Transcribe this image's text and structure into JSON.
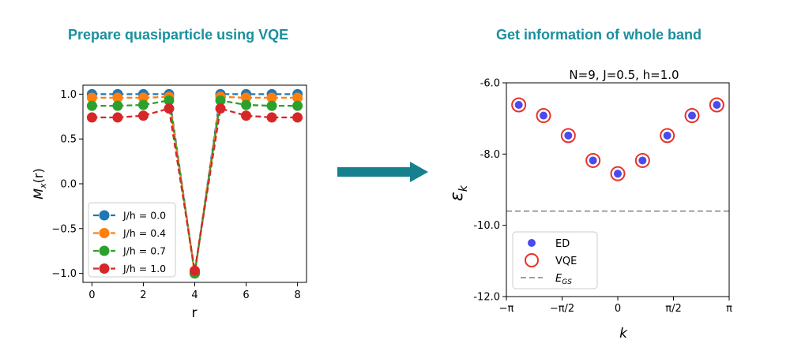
{
  "left_heading": "Prepare quasiparticle using VQE",
  "right_heading": "Get information of whole band",
  "chart_data": [
    {
      "type": "line",
      "title": "",
      "xlabel": "r",
      "ylabel": "M_x(r)",
      "ylabel_main": "M",
      "ylabel_sub": "x",
      "ylabel_tail": "(r)",
      "xlim": [
        -0.35,
        8.35
      ],
      "ylim": [
        -1.1,
        1.1
      ],
      "xticks": [
        0,
        2,
        4,
        6,
        8
      ],
      "xtick_labels": [
        "0",
        "2",
        "4",
        "6",
        "8"
      ],
      "yticks": [
        1.0,
        0.5,
        0.0,
        -0.5,
        -1.0
      ],
      "ytick_labels": [
        "1.0",
        "0.5",
        "0.0",
        "−0.5",
        "−1.0"
      ],
      "legend_position": "lower-left",
      "x": [
        0,
        1,
        2,
        3,
        4,
        5,
        6,
        7,
        8
      ],
      "series": [
        {
          "name": "J/h = 0.0",
          "color": "#1f77b4",
          "values": [
            1.0,
            1.0,
            1.0,
            1.0,
            -1.0,
            1.0,
            1.0,
            1.0,
            1.0
          ]
        },
        {
          "name": "J/h = 0.4",
          "color": "#ff7f0e",
          "values": [
            0.96,
            0.96,
            0.96,
            0.97,
            -1.0,
            0.97,
            0.96,
            0.96,
            0.96
          ]
        },
        {
          "name": "J/h = 0.7",
          "color": "#2ca02c",
          "values": [
            0.87,
            0.87,
            0.88,
            0.93,
            -1.0,
            0.93,
            0.88,
            0.87,
            0.87
          ]
        },
        {
          "name": "J/h = 1.0",
          "color": "#d62728",
          "values": [
            0.74,
            0.74,
            0.76,
            0.84,
            -0.97,
            0.84,
            0.76,
            0.74,
            0.74
          ]
        }
      ]
    },
    {
      "type": "scatter",
      "title": "N=9, J=0.5, h=1.0",
      "xlabel": "k",
      "ylabel": "ε_k",
      "ylabel_main": "ε",
      "ylabel_sub": "k",
      "xlim": [
        -3.1416,
        3.1416
      ],
      "ylim": [
        -12.0,
        -6.0
      ],
      "xticks": [
        -3.1416,
        -1.5708,
        0,
        1.5708,
        3.1416
      ],
      "xtick_labels": [
        "−π",
        "−π/2",
        "0",
        "π/2",
        "π"
      ],
      "yticks": [
        -6.0,
        -8.0,
        -10.0,
        -12.0
      ],
      "ytick_labels": [
        "-6.0",
        "-8.0",
        "-10.0",
        "-12.0"
      ],
      "legend_position": "lower-left",
      "x": [
        -2.793,
        -2.094,
        -1.396,
        -0.698,
        0,
        0.698,
        1.396,
        2.094,
        2.793
      ],
      "series": [
        {
          "name": "ED",
          "marker": "filled-circle",
          "color": "#4a4aee",
          "values": [
            -6.62,
            -6.92,
            -7.48,
            -8.18,
            -8.55,
            -8.18,
            -7.48,
            -6.92,
            -6.62
          ]
        },
        {
          "name": "VQE",
          "marker": "open-circle",
          "color": "#e8312a",
          "values": [
            -6.62,
            -6.92,
            -7.48,
            -8.18,
            -8.55,
            -8.18,
            -7.48,
            -6.92,
            -6.62
          ]
        }
      ],
      "reference_line": {
        "name_main": "E",
        "name_sub": "GS",
        "value": -9.6,
        "color": "#808080",
        "style": "dashed"
      }
    }
  ],
  "arrow_color": "#17808e"
}
